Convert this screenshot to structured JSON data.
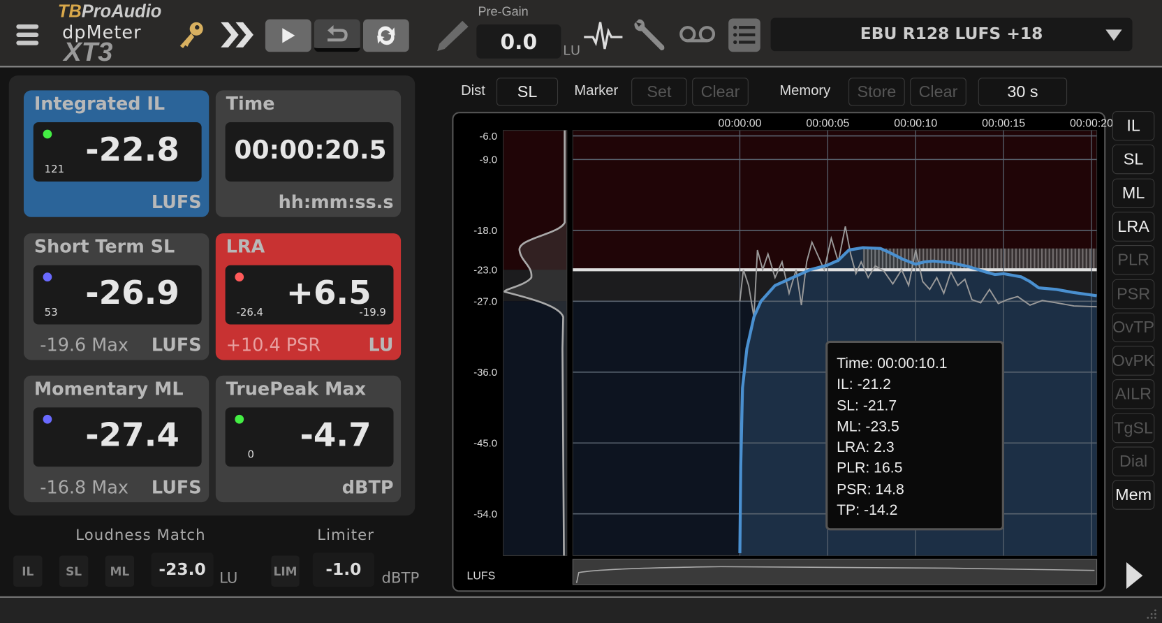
{
  "header": {
    "logo": {
      "brand": "TBProAudio",
      "product": "dpMeter",
      "version": "XT3"
    },
    "icons": [
      "menu-icon",
      "key-icon",
      "fast-forward-icon",
      "play-icon",
      "reset-icon",
      "sync-icon",
      "pencil-icon",
      "waveform-icon",
      "wrench-icon",
      "tape-icon",
      "list-icon"
    ],
    "pregain": {
      "label": "Pre-Gain",
      "value": "0.0",
      "unit": "LU"
    },
    "preset": "EBU R128 LUFS +18"
  },
  "meters": [
    {
      "title": "Integrated IL",
      "value": "-22.8",
      "count": "121",
      "unit": "LUFS",
      "dot": "#44ee44",
      "bg": "#2b6499"
    },
    {
      "title": "Time",
      "value": "00:00:20.5",
      "unit": "hh:mm:ss.s",
      "bg": "#404040"
    },
    {
      "title": "Short Term SL",
      "value": "-26.9",
      "count": "53",
      "sub": "-19.6 Max",
      "unit": "LUFS",
      "dot": "#6a6aff",
      "bg": "#404040"
    },
    {
      "title": "LRA",
      "value": "+6.5",
      "low": "-26.4",
      "high": "-19.9",
      "sub": "+10.4 PSR",
      "unit": "LU",
      "dot": "#ff5a5a",
      "bg": "#c83232"
    },
    {
      "title": "Momentary ML",
      "value": "-27.4",
      "sub": "-16.8 Max",
      "unit": "LUFS",
      "dot": "#6a6aff",
      "bg": "#404040"
    },
    {
      "title": "TruePeak Max",
      "value": "-4.7",
      "count": "0",
      "unit": "dBTP",
      "dot": "#44ee44",
      "bg": "#404040"
    }
  ],
  "loudness_match": {
    "label": "Loudness Match",
    "buttons": [
      "IL",
      "SL",
      "ML"
    ],
    "value": "-23.0",
    "unit": "LU"
  },
  "limiter": {
    "label": "Limiter",
    "button": "LIM",
    "value": "-1.0",
    "unit": "dBTP"
  },
  "toolbar": {
    "dist_label": "Dist",
    "dist_value": "SL",
    "marker_label": "Marker",
    "marker_set": "Set",
    "marker_clear": "Clear",
    "memory_label": "Memory",
    "memory_store": "Store",
    "memory_clear": "Clear",
    "window": "30 s"
  },
  "side_buttons": [
    {
      "label": "IL",
      "active": true
    },
    {
      "label": "SL",
      "active": true
    },
    {
      "label": "ML",
      "active": true
    },
    {
      "label": "LRA",
      "active": true
    },
    {
      "label": "PLR",
      "active": false
    },
    {
      "label": "PSR",
      "active": false
    },
    {
      "label": "OvTP",
      "active": false
    },
    {
      "label": "OvPK",
      "active": false
    },
    {
      "label": "AILR",
      "active": false
    },
    {
      "label": "TgSL",
      "active": false
    },
    {
      "label": "Dial",
      "active": false
    },
    {
      "label": "Mem",
      "active": true
    }
  ],
  "chart_data": {
    "type": "line",
    "ylabel": "LUFS",
    "ylim": [
      -59.3,
      -5.3
    ],
    "xlim": [
      -9.5,
      20.3
    ],
    "y_ticks": [
      -6.0,
      -9.0,
      -18.0,
      -23.0,
      -27.0,
      -36.0,
      -45.0,
      -54.0
    ],
    "y_tick_labels": [
      "-6.0",
      "-9.0",
      "-18.0",
      "-23.0",
      "-27.0",
      "-36.0",
      "-45.0",
      "-54.0"
    ],
    "x_ticks": [
      0,
      5,
      10,
      15,
      20
    ],
    "x_tick_labels": [
      "00:00:00",
      "00:00:05",
      "00:00:10",
      "00:00:15",
      "00:00:20"
    ],
    "target": -23.0,
    "colors": {
      "above": "#200507",
      "band": "#1c1c1e",
      "below": "#0d1420",
      "fill": "#1c2f45",
      "il": "#4a90d0",
      "sl": "#9a9a9a"
    },
    "series": [
      {
        "key": "il",
        "x": [
          0,
          0.05,
          0.15,
          0.4,
          0.8,
          1.2,
          2,
          3,
          4,
          5,
          5.6,
          6.2,
          7,
          8,
          8.5,
          9.3,
          10,
          10.5,
          11,
          12,
          13,
          14,
          14.5,
          15,
          16,
          16.5,
          17,
          18,
          19,
          20.3
        ],
        "y": [
          -59,
          -48,
          -38,
          -33,
          -29,
          -27,
          -25,
          -24,
          -23,
          -22.4,
          -21.8,
          -20.5,
          -20.2,
          -20.3,
          -20.8,
          -21.7,
          -22.3,
          -22.0,
          -21.9,
          -22.1,
          -22.6,
          -23.3,
          -23.6,
          -23.5,
          -23.9,
          -24.5,
          -25.3,
          -25.5,
          -25.9,
          -26.3
        ]
      },
      {
        "key": "sl",
        "x": [
          0,
          0.2,
          0.5,
          0.8,
          1,
          1.3,
          1.6,
          2,
          2.4,
          2.8,
          3.2,
          3.5,
          3.8,
          4.1,
          4.4,
          4.8,
          5.2,
          5.6,
          6,
          6.3,
          6.6,
          6.9,
          7.3,
          7.7,
          8.2,
          8.7,
          9.2,
          9.6,
          10,
          10.4,
          10.8,
          11.2,
          11.6,
          12,
          12.4,
          12.8,
          13.2,
          13.7,
          14.2,
          14.7,
          15.2,
          15.8,
          16.5,
          17.2,
          18,
          19,
          20.3
        ],
        "y": [
          -27,
          -23,
          -25,
          -29,
          -20.5,
          -23,
          -21,
          -24,
          -22,
          -26,
          -23,
          -27.5,
          -22,
          -19.5,
          -21,
          -23,
          -19,
          -22,
          -17.5,
          -21,
          -23.5,
          -22,
          -24,
          -22.5,
          -23.2,
          -24.8,
          -23,
          -25,
          -20.5,
          -24.5,
          -25.5,
          -24,
          -26,
          -23.3,
          -25,
          -24.2,
          -26.8,
          -27.2,
          -25.5,
          -27.3,
          -26.8,
          -26.4,
          -27.5,
          -26.9,
          -27.2,
          -27.6,
          -27.7
        ]
      }
    ],
    "lra_range": {
      "x": [
        7,
        20.3
      ],
      "y": [
        -20.3,
        -23
      ]
    },
    "tooltip": [
      "Time: 00:00:10.1",
      "IL: -21.2",
      "SL: -21.7",
      "ML: -23.5",
      "LRA: 2.3",
      "PLR: 16.5",
      "PSR: 14.8",
      "TP: -14.2"
    ]
  }
}
